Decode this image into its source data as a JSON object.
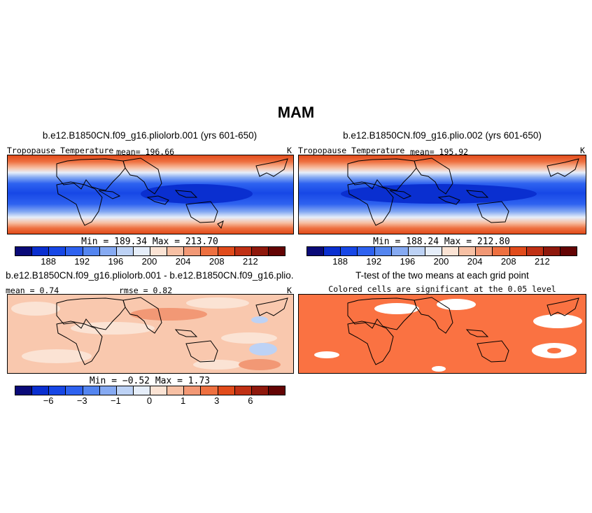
{
  "figure": {
    "title": "MAM"
  },
  "panels": {
    "p1": {
      "title": "b.e12.B1850CN.f09_g16.pliolorb.001 (yrs 601-650)",
      "variable": "Tropopause Temperature",
      "mean": "mean= 196.66",
      "units": "K",
      "minmax": "Min = 189.34 Max = 213.70"
    },
    "p2": {
      "title": "b.e12.B1850CN.f09_g16.plio.002 (yrs 601-650)",
      "variable": "Tropopause Temperature",
      "mean": "mean= 195.92",
      "units": "K",
      "minmax": "Min = 188.24 Max = 212.80"
    },
    "p3": {
      "title": "b.e12.B1850CN.f09_g16.pliolorb.001 - b.e12.B1850CN.f09_g16.plio.002",
      "mean": "mean = 0.74",
      "rmse": "rmse = 0.82",
      "units": "K",
      "minmax": "Min = −0.52 Max = 1.73"
    },
    "p4": {
      "title": "T-test of the two means at each grid point",
      "subtitle": "Colored cells are significant at the 0.05 level"
    }
  },
  "colorbar_abs": {
    "colors": [
      "#0a0a78",
      "#0a2fd0",
      "#1747e6",
      "#2e62f0",
      "#5485f0",
      "#86aaf2",
      "#bdd2f5",
      "#e6eefa",
      "#fbe3d4",
      "#f7c0a4",
      "#f29875",
      "#ee7040",
      "#e14b1b",
      "#c03014",
      "#8f180c",
      "#640404"
    ],
    "labels": [
      "188",
      "192",
      "196",
      "200",
      "204",
      "208",
      "212"
    ]
  },
  "colorbar_diff": {
    "colors": [
      "#0a0a78",
      "#0a2fd0",
      "#1747e6",
      "#2e62f0",
      "#5485f0",
      "#86aaf2",
      "#bdd2f5",
      "#e6eefa",
      "#fbe3d4",
      "#f7c0a4",
      "#f29875",
      "#ee7040",
      "#e14b1b",
      "#c03014",
      "#8f180c",
      "#640404"
    ],
    "labels": [
      "−6",
      "−3",
      "−1",
      "0",
      "1",
      "3",
      "6"
    ]
  },
  "colors": {
    "ttest_significant": "#fa7242",
    "diff_background": "#f9c8ae"
  }
}
